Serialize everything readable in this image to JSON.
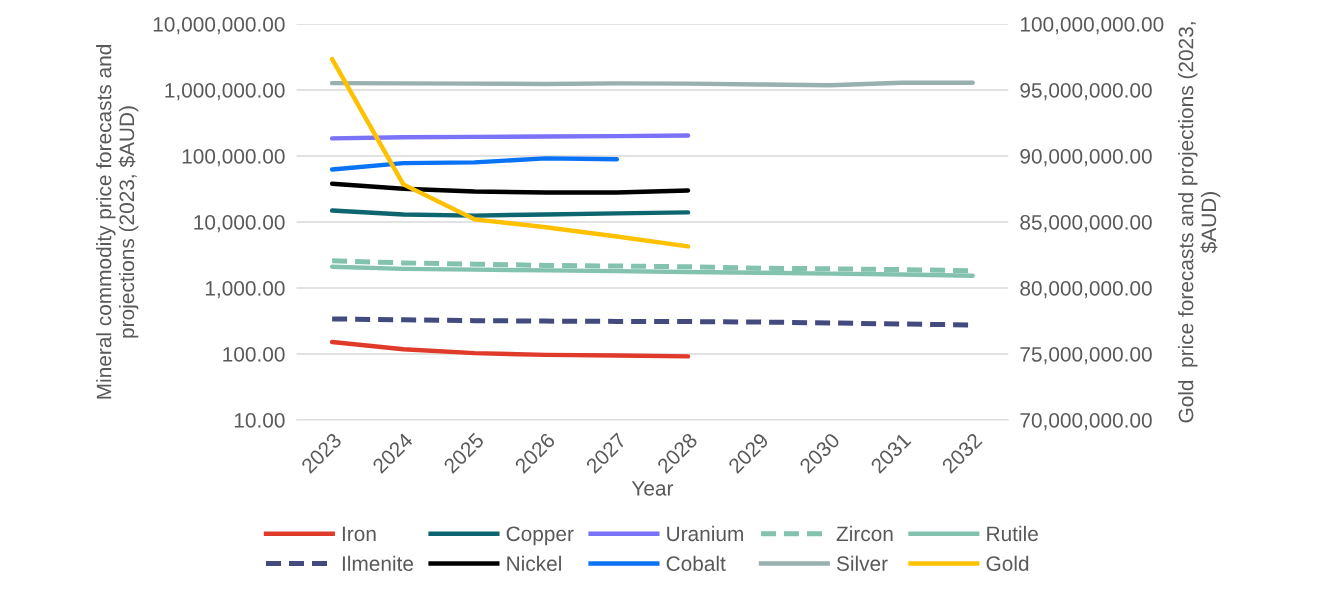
{
  "chart_data": {
    "type": "line",
    "xlabel": "Year",
    "ylabel": "Mineral commodity price forecasts and projections (2023, $AUD)",
    "y2label": "Gold  price forecasts and projections (2023, $AUD)",
    "categories": [
      "2023",
      "2024",
      "2025",
      "2026",
      "2027",
      "2028",
      "2029",
      "2030",
      "2031",
      "2032"
    ],
    "log": "y",
    "grid": "y",
    "legend": "bottom",
    "marker": "none",
    "ylim": [
      10,
      10000000
    ],
    "yticks": [
      {
        "value": 10,
        "label": "10.00"
      },
      {
        "value": 100,
        "label": "100.00"
      },
      {
        "value": 1000,
        "label": "1,000.00"
      },
      {
        "value": 10000,
        "label": "10,000.00"
      },
      {
        "value": 100000,
        "label": "100,000.00"
      },
      {
        "value": 1000000,
        "label": "1,000,000.00"
      },
      {
        "value": 10000000,
        "label": "10,000,000.00"
      }
    ],
    "y2lim": [
      70000000,
      100000000
    ],
    "y2ticks": [
      {
        "value": 70000000,
        "label": "70,000,000.00"
      },
      {
        "value": 75000000,
        "label": "75,000,000.00"
      },
      {
        "value": 80000000,
        "label": "80,000,000.00"
      },
      {
        "value": 85000000,
        "label": "85,000,000.00"
      },
      {
        "value": 90000000,
        "label": "90,000,000.00"
      },
      {
        "value": 95000000,
        "label": "95,000,000.00"
      },
      {
        "value": 100000000,
        "label": "100,000,000.00"
      }
    ],
    "series": [
      {
        "name": "Iron",
        "color": "#e03a2a",
        "line_style": "solid",
        "values": [
          152,
          118,
          103,
          97,
          95,
          92,
          null,
          null,
          null,
          null
        ]
      },
      {
        "name": "Copper",
        "color": "#0d6570",
        "line_style": "solid",
        "values": [
          14900,
          13000,
          12500,
          13000,
          13500,
          14000,
          null,
          null,
          null,
          null
        ]
      },
      {
        "name": "Uranium",
        "color": "#7b72f7",
        "line_style": "solid",
        "values": [
          185000,
          192000,
          195000,
          197000,
          200000,
          204000,
          null,
          null,
          null,
          null
        ]
      },
      {
        "name": "Zircon",
        "color": "#83c2ae",
        "line_style": "dashed",
        "values": [
          2590,
          2400,
          2300,
          2200,
          2150,
          2100,
          2000,
          1950,
          1900,
          1820
        ]
      },
      {
        "name": "Rutile",
        "color": "#83c2ae",
        "line_style": "solid",
        "values": [
          2100,
          1950,
          1900,
          1850,
          1800,
          1750,
          1700,
          1650,
          1600,
          1530
        ]
      },
      {
        "name": "Ilmenite",
        "color": "#434a7e",
        "line_style": "dashed",
        "values": [
          340,
          330,
          320,
          315,
          312,
          310,
          305,
          295,
          285,
          275
        ]
      },
      {
        "name": "Nickel",
        "color": "#000000",
        "line_style": "solid",
        "values": [
          38000,
          32000,
          29000,
          28000,
          28000,
          30000,
          null,
          null,
          null,
          null
        ]
      },
      {
        "name": "Cobalt",
        "color": "#0a72f5",
        "line_style": "solid",
        "values": [
          62500,
          78000,
          80000,
          92000,
          89000,
          null,
          null,
          null,
          null,
          null
        ]
      },
      {
        "name": "Silver",
        "color": "#98b0ae",
        "line_style": "solid",
        "values": [
          1270000,
          1260000,
          1250000,
          1230000,
          1260000,
          1250000,
          1210000,
          1180000,
          1290000,
          1290000
        ]
      },
      {
        "name": "Gold",
        "color": "#ffc000",
        "line_style": "solid",
        "axis": "y2",
        "values": [
          97340000,
          87850000,
          85200000,
          84600000,
          83900000,
          83150000,
          null,
          null,
          null,
          null
        ]
      }
    ]
  }
}
